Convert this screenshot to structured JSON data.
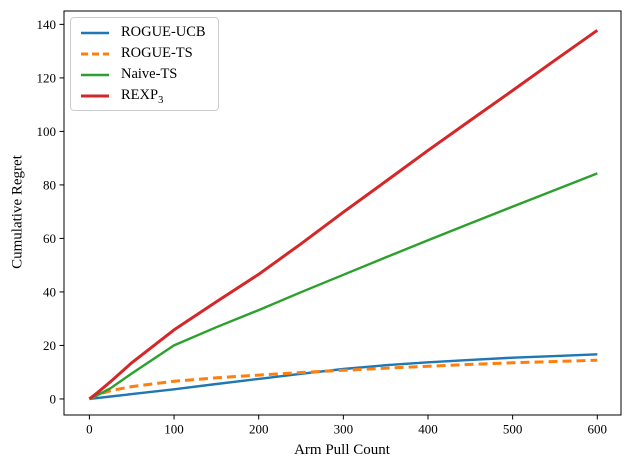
{
  "figure": {
    "background": "#ffffff",
    "text_color": "#000000",
    "spine_color": "#000000",
    "legend_border_color": "#cccccc"
  },
  "chart_data": {
    "type": "line",
    "title": "",
    "xlabel": "Arm Pull Count",
    "ylabel": "Cumulative Regret",
    "xlim": [
      -30,
      628
    ],
    "ylim": [
      -6,
      145
    ],
    "xticks": [
      0,
      100,
      200,
      300,
      400,
      500,
      600
    ],
    "yticks": [
      0,
      20,
      40,
      60,
      80,
      100,
      120,
      140
    ],
    "grid": false,
    "legend_position": "upper-left",
    "series": [
      {
        "name": "ROGUE-UCB",
        "name_base": "ROGUE-UCB",
        "name_sub": "",
        "color": "#1f77b4",
        "dash": "",
        "width": 2.4,
        "x": [
          0,
          25,
          50,
          100,
          150,
          200,
          250,
          300,
          350,
          400,
          450,
          500,
          550,
          600
        ],
        "y": [
          0,
          0.9,
          1.8,
          3.6,
          5.6,
          7.5,
          9.4,
          11.2,
          12.6,
          13.7,
          14.6,
          15.4,
          16.0,
          16.7
        ]
      },
      {
        "name": "ROGUE-TS",
        "name_base": "ROGUE-TS",
        "name_sub": "",
        "color": "#ff7f0e",
        "dash": "9 5",
        "width": 3,
        "x": [
          0,
          10,
          25,
          50,
          100,
          150,
          200,
          250,
          300,
          350,
          400,
          450,
          500,
          550,
          600
        ],
        "y": [
          0,
          1.6,
          3.1,
          4.6,
          6.6,
          7.9,
          8.9,
          9.9,
          10.7,
          11.5,
          12.2,
          12.9,
          13.5,
          14.0,
          14.5
        ]
      },
      {
        "name": "Naive-TS",
        "name_base": "Naive-TS",
        "name_sub": "",
        "color": "#2ca02c",
        "dash": "",
        "width": 2.4,
        "x": [
          0,
          10,
          25,
          50,
          100,
          150,
          200,
          250,
          300,
          350,
          400,
          450,
          500,
          550,
          600
        ],
        "y": [
          0,
          1.5,
          4.0,
          9.5,
          20.0,
          26.8,
          33.2,
          39.9,
          46.4,
          52.9,
          59.3,
          65.6,
          71.9,
          78.1,
          84.3
        ]
      },
      {
        "name": "REXP3",
        "name_base": "REXP",
        "name_sub": "3",
        "color": "#d62728",
        "dash": "",
        "width": 3,
        "x": [
          0,
          10,
          25,
          50,
          100,
          150,
          200,
          250,
          300,
          350,
          400,
          450,
          500,
          550,
          600
        ],
        "y": [
          0,
          2.5,
          6.5,
          13.5,
          25.8,
          36.3,
          46.6,
          58.0,
          69.8,
          81.3,
          92.9,
          104.1,
          115.3,
          126.6,
          137.8
        ]
      }
    ]
  }
}
